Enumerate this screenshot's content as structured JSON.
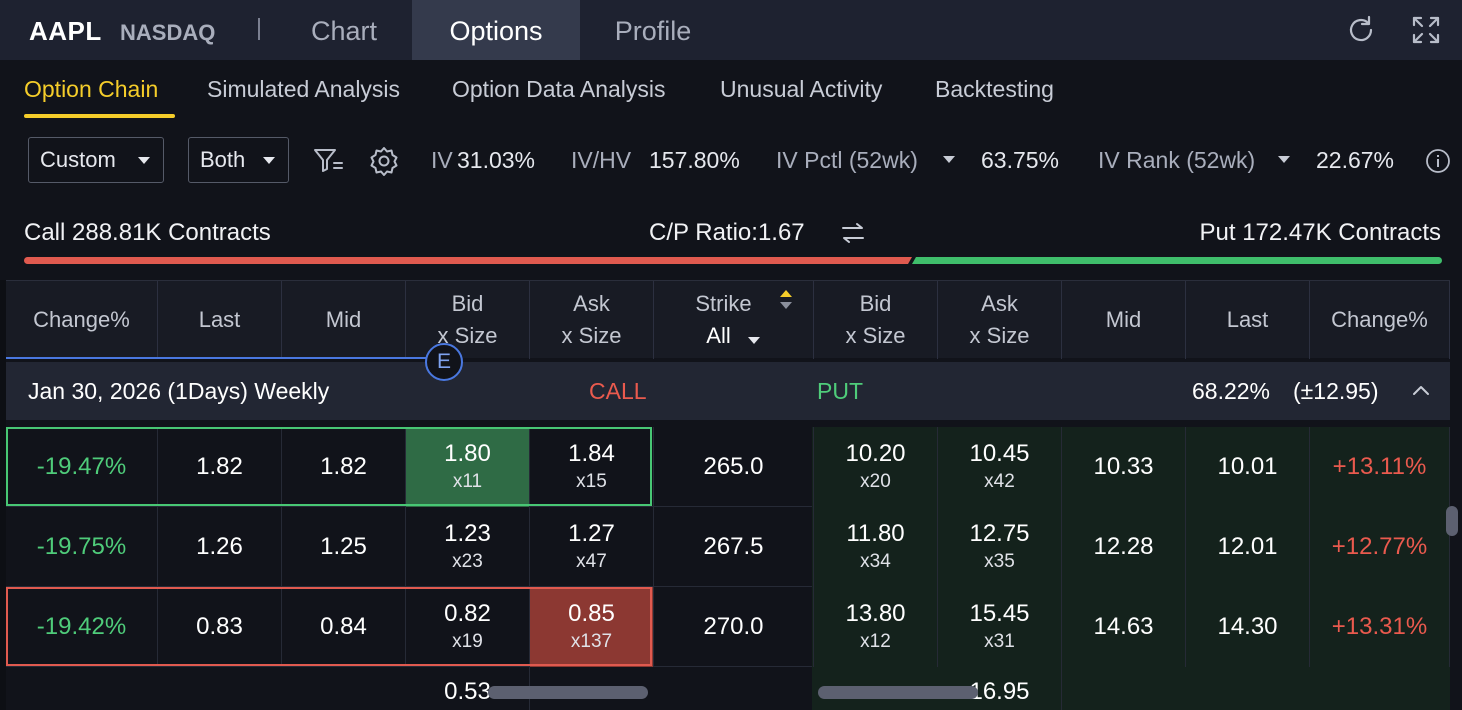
{
  "header": {
    "symbol": "AAPL",
    "exchange": "NASDAQ",
    "tabs": [
      "Chart",
      "Options",
      "Profile"
    ],
    "active_tab": "Options",
    "icons": [
      "refresh-icon",
      "fullscreen-icon"
    ]
  },
  "subtabs": {
    "items": [
      "Option Chain",
      "Simulated Analysis",
      "Option Data Analysis",
      "Unusual Activity",
      "Backtesting"
    ],
    "active": "Option Chain"
  },
  "filters": {
    "range": "Custom",
    "side": "Both",
    "iv_label": "IV",
    "iv_value": "31.03%",
    "ivhv_label": "IV/HV",
    "ivhv_value": "157.80%",
    "ivpctl_label": "IV Pctl (52wk)",
    "ivpctl_value": "63.75%",
    "ivrank_label": "IV Rank (52wk)",
    "ivrank_value": "22.67%"
  },
  "summary": {
    "call": "Call 288.81K Contracts",
    "ratio": "C/P Ratio:1.67",
    "put": "Put 172.47K Contracts",
    "call_volume_share": 0.626,
    "colors": {
      "call": "#e05a4f",
      "put": "#3fbe6b",
      "accent": "#f5cd2a"
    }
  },
  "table": {
    "headers": {
      "change_pct": "Change%",
      "last": "Last",
      "mid": "Mid",
      "bid_1": "Bid",
      "bid_2": "x Size",
      "ask_1": "Ask",
      "ask_2": "x Size",
      "strike": "Strike",
      "strike_filter": "All"
    },
    "expiry_badge": "E",
    "expiry": {
      "label": "Jan 30, 2026 (1Days) Weekly",
      "call": "CALL",
      "put": "PUT",
      "iv_move": "68.22%",
      "move": "(±12.95)"
    },
    "rows": [
      {
        "c_change": "-19.47%",
        "c_last": "1.82",
        "c_mid": "1.82",
        "c_bid": "1.80",
        "c_bid_size": "x11",
        "c_ask": "1.84",
        "c_ask_size": "x15",
        "strike": "265.0",
        "p_bid": "10.20",
        "p_bid_size": "x20",
        "p_ask": "10.45",
        "p_ask_size": "x42",
        "p_mid": "10.33",
        "p_last": "10.01",
        "p_change": "+13.11%"
      },
      {
        "c_change": "-19.75%",
        "c_last": "1.26",
        "c_mid": "1.25",
        "c_bid": "1.23",
        "c_bid_size": "x23",
        "c_ask": "1.27",
        "c_ask_size": "x47",
        "strike": "267.5",
        "p_bid": "11.80",
        "p_bid_size": "x34",
        "p_ask": "12.75",
        "p_ask_size": "x35",
        "p_mid": "12.28",
        "p_last": "12.01",
        "p_change": "+12.77%"
      },
      {
        "c_change": "-19.42%",
        "c_last": "0.83",
        "c_mid": "0.84",
        "c_bid": "0.82",
        "c_bid_size": "x19",
        "c_ask": "0.85",
        "c_ask_size": "x137",
        "strike": "270.0",
        "p_bid": "13.80",
        "p_bid_size": "x12",
        "p_ask": "15.45",
        "p_ask_size": "x31",
        "p_mid": "14.63",
        "p_last": "14.30",
        "p_change": "+13.31%"
      },
      {
        "c_bid": "0.53",
        "p_ask": "16.95"
      }
    ]
  }
}
